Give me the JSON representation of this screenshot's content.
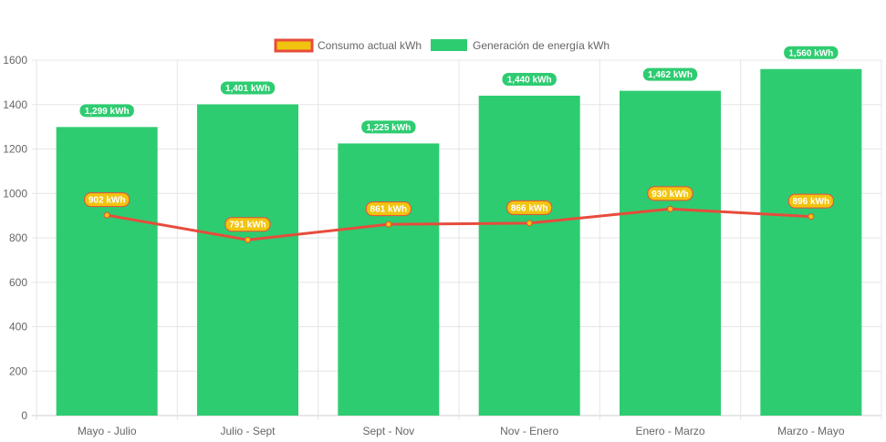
{
  "chart_data": {
    "type": "bar",
    "categories": [
      "Mayo - Julio",
      "Julio - Sept",
      "Sept - Nov",
      "Nov - Enero",
      "Enero - Marzo",
      "Marzo - Mayo"
    ],
    "series": [
      {
        "name": "Consumo actual kWh",
        "type": "line",
        "values": [
          902,
          791,
          861,
          866,
          930,
          896
        ],
        "labels": [
          "902 kWh",
          "791 kWh",
          "861 kWh",
          "866 kWh",
          "930 kWh",
          "896 kWh"
        ],
        "color": "#e74c3c",
        "fill": "#f1c40f"
      },
      {
        "name": "Generación de energía kWh",
        "type": "bar",
        "values": [
          1299,
          1401,
          1225,
          1440,
          1462,
          1560
        ],
        "labels": [
          "1,299 kWh",
          "1,401 kWh",
          "1,225 kWh",
          "1,440 kWh",
          "1,462 kWh",
          "1,560 kWh"
        ],
        "color": "#2ecc71"
      }
    ],
    "ylim": [
      0,
      1600
    ],
    "yticks": [
      "0",
      "200",
      "400",
      "600",
      "800",
      "1000",
      "1200",
      "1400",
      "1600"
    ],
    "legend": "top",
    "grid": true,
    "title": "",
    "xlabel": "",
    "ylabel": ""
  }
}
